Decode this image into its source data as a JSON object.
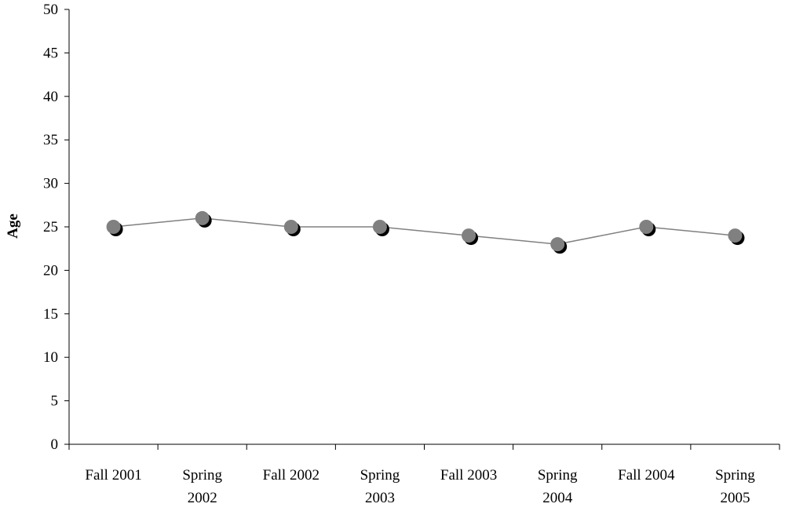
{
  "chart_data": {
    "type": "line",
    "categories": [
      [
        "Fall 2001"
      ],
      [
        "Spring",
        "2002"
      ],
      [
        "Fall 2002"
      ],
      [
        "Spring",
        "2003"
      ],
      [
        "Fall 2003"
      ],
      [
        "Spring",
        "2004"
      ],
      [
        "Fall 2004"
      ],
      [
        "Spring",
        "2005"
      ]
    ],
    "series": [
      {
        "values": [
          25,
          26,
          25,
          25,
          24,
          23,
          25,
          24
        ]
      }
    ],
    "ylabel": "Age",
    "xlabel": "",
    "title": "",
    "ylim": [
      0,
      50
    ],
    "yticks": [
      0,
      5,
      10,
      15,
      20,
      25,
      30,
      35,
      40,
      45,
      50
    ],
    "grid": false,
    "colors": {
      "line": "#808080",
      "marker": "#808080",
      "marker_shadow": "#000000",
      "axis": "#000000"
    }
  }
}
